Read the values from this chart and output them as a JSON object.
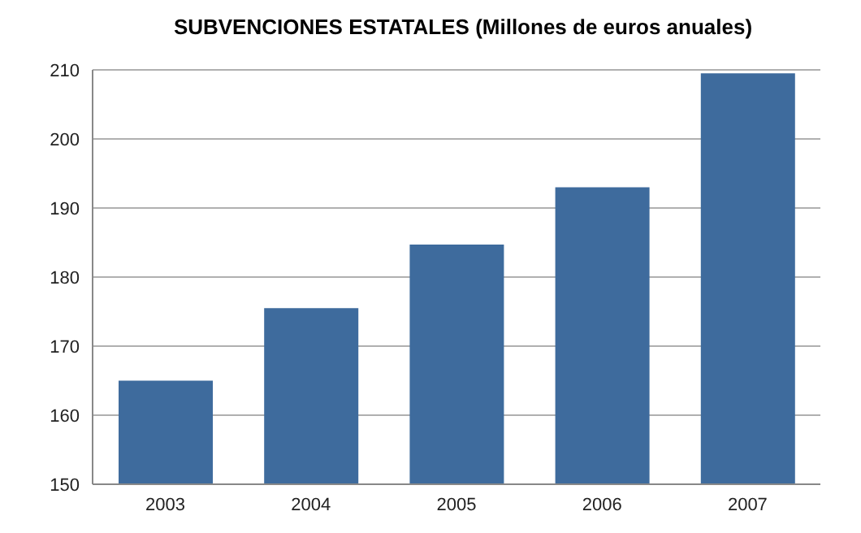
{
  "chart_data": {
    "type": "bar",
    "title": "SUBVENCIONES ESTATALES (Millones de euros anuales)",
    "categories": [
      "2003",
      "2004",
      "2005",
      "2006",
      "2007"
    ],
    "values": [
      165,
      175.5,
      184.7,
      193,
      209.5
    ],
    "color": "#3e6b9d",
    "ylim": [
      150,
      210
    ],
    "yticks": [
      150,
      160,
      170,
      180,
      190,
      200,
      210
    ],
    "grid": "y"
  }
}
